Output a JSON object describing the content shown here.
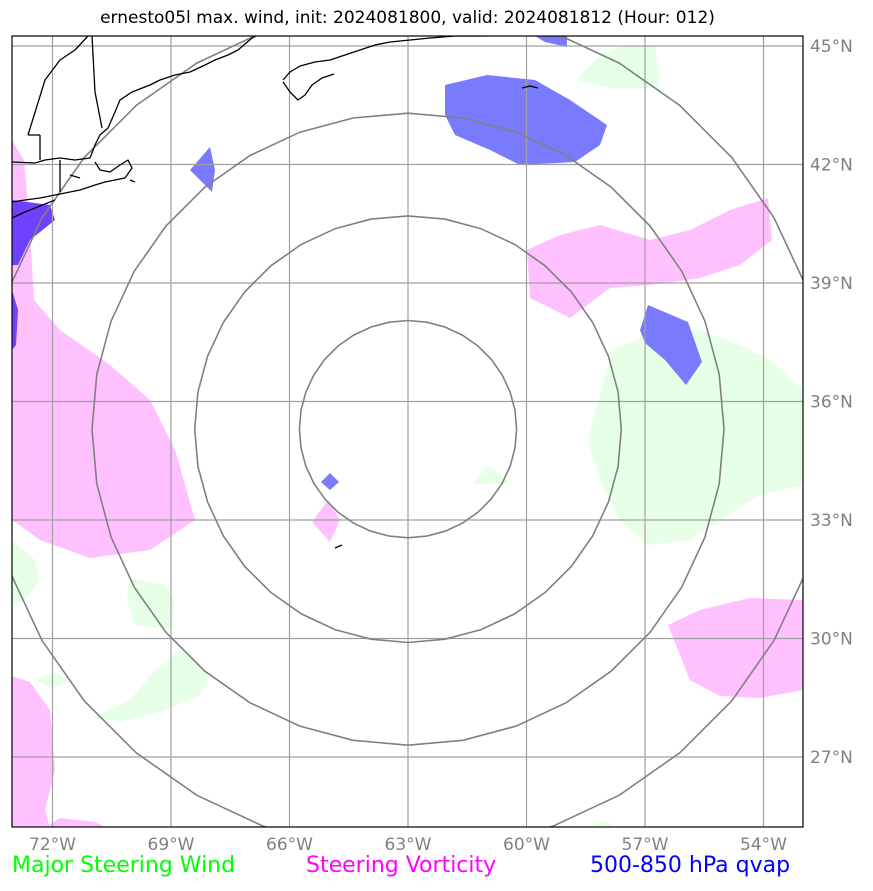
{
  "title": "ernesto05l max. wind, init: 2024081800, valid: 2024081812 (Hour: 012)",
  "map": {
    "projection": "PlateCarree",
    "lon_range": [
      -73.5,
      -53.5
    ],
    "lat_range": [
      25,
      45.3
    ],
    "lon_ticks": [
      {
        "value": -72,
        "label": "72°W"
      },
      {
        "value": -69,
        "label": "69°W"
      },
      {
        "value": -66,
        "label": "66°W"
      },
      {
        "value": -63,
        "label": "63°W"
      },
      {
        "value": -60,
        "label": "60°W"
      },
      {
        "value": -57,
        "label": "57°W"
      },
      {
        "value": -54,
        "label": "54°W"
      }
    ],
    "lat_ticks": [
      {
        "value": 45,
        "label": "45°N"
      },
      {
        "value": 42,
        "label": "42°N"
      },
      {
        "value": 39,
        "label": "39°N"
      },
      {
        "value": 36,
        "label": "36°N"
      },
      {
        "value": 33,
        "label": "33°N"
      },
      {
        "value": 30,
        "label": "30°N"
      },
      {
        "value": 27,
        "label": "27°N"
      }
    ],
    "gridlines": true,
    "storm_center": {
      "lon": -63,
      "lat": 35.3
    },
    "range_rings_lat_offsets": [
      2.75,
      5.4,
      8.0,
      10.7
    ],
    "colors": {
      "grid": "#a0a0a0",
      "rings": "#808080",
      "coast": "#000000",
      "steering_wind": "#e6ffe6",
      "steering_vorticity": "#ffc0ff",
      "qvap": "#7a7aff",
      "qvap_deep": "#7040ff"
    }
  },
  "legend": {
    "wind": {
      "label": "Major Steering Wind",
      "color": "#00ff00"
    },
    "vorticity": {
      "label": "Steering Vorticity",
      "color": "#ff00ff"
    },
    "qvap": {
      "label": "500-850 hPa qvap",
      "color": "#0000ff"
    }
  }
}
